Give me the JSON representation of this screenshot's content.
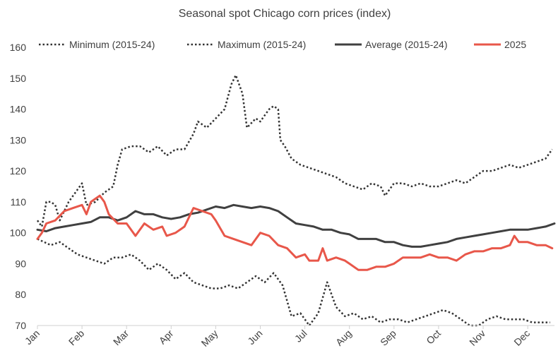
{
  "chart_data": {
    "type": "line",
    "title": "Seasonal spot Chicago corn prices (index)",
    "xlabel": "",
    "ylabel": "",
    "ylim": [
      70,
      160
    ],
    "yticks": [
      70,
      80,
      90,
      100,
      110,
      120,
      130,
      140,
      150,
      160
    ],
    "x_unit": "month",
    "xlim": [
      0,
      11.6
    ],
    "months": [
      "Jan",
      "Feb",
      "Mar",
      "Apr",
      "May",
      "Jun",
      "Jul",
      "Aug",
      "Sep",
      "Oct",
      "Nov",
      "Dec"
    ],
    "grid": false,
    "legend_position": "top",
    "series": [
      {
        "name": "Minimum (2015-24)",
        "color": "#333333",
        "style": "dotted",
        "points": [
          [
            0,
            98
          ],
          [
            0.15,
            97
          ],
          [
            0.3,
            96
          ],
          [
            0.5,
            97
          ],
          [
            0.7,
            95
          ],
          [
            0.9,
            93
          ],
          [
            1.1,
            92
          ],
          [
            1.3,
            91
          ],
          [
            1.5,
            90
          ],
          [
            1.7,
            92
          ],
          [
            1.9,
            92
          ],
          [
            2.1,
            93
          ],
          [
            2.3,
            91
          ],
          [
            2.5,
            88
          ],
          [
            2.7,
            90
          ],
          [
            2.9,
            88
          ],
          [
            3.1,
            85
          ],
          [
            3.3,
            87
          ],
          [
            3.5,
            84
          ],
          [
            3.7,
            83
          ],
          [
            3.9,
            82
          ],
          [
            4.1,
            82
          ],
          [
            4.3,
            83
          ],
          [
            4.5,
            82
          ],
          [
            4.7,
            84
          ],
          [
            4.9,
            86
          ],
          [
            5.1,
            84
          ],
          [
            5.3,
            87
          ],
          [
            5.5,
            83
          ],
          [
            5.7,
            73
          ],
          [
            5.9,
            74
          ],
          [
            6.1,
            70
          ],
          [
            6.3,
            74
          ],
          [
            6.5,
            84
          ],
          [
            6.7,
            76
          ],
          [
            6.9,
            73
          ],
          [
            7.1,
            74
          ],
          [
            7.3,
            72
          ],
          [
            7.5,
            73
          ],
          [
            7.7,
            71
          ],
          [
            7.9,
            72
          ],
          [
            8.1,
            72
          ],
          [
            8.3,
            71
          ],
          [
            8.5,
            72
          ],
          [
            8.7,
            73
          ],
          [
            8.9,
            74
          ],
          [
            9.1,
            75
          ],
          [
            9.3,
            74
          ],
          [
            9.5,
            72
          ],
          [
            9.7,
            70
          ],
          [
            9.9,
            70
          ],
          [
            10.1,
            72
          ],
          [
            10.3,
            73
          ],
          [
            10.5,
            72
          ],
          [
            10.7,
            72
          ],
          [
            10.9,
            72
          ],
          [
            11.1,
            71
          ],
          [
            11.3,
            71
          ],
          [
            11.5,
            71
          ]
        ]
      },
      {
        "name": "Maximum (2015-24)",
        "color": "#333333",
        "style": "dotted",
        "points": [
          [
            0,
            104
          ],
          [
            0.1,
            102
          ],
          [
            0.2,
            110
          ],
          [
            0.3,
            110
          ],
          [
            0.4,
            109
          ],
          [
            0.5,
            104
          ],
          [
            0.7,
            110
          ],
          [
            0.9,
            114
          ],
          [
            1.0,
            116
          ],
          [
            1.1,
            109
          ],
          [
            1.3,
            110
          ],
          [
            1.5,
            113
          ],
          [
            1.7,
            115
          ],
          [
            1.8,
            122
          ],
          [
            1.9,
            127
          ],
          [
            2.1,
            128
          ],
          [
            2.3,
            128
          ],
          [
            2.5,
            126
          ],
          [
            2.7,
            128
          ],
          [
            2.9,
            125
          ],
          [
            3.1,
            127
          ],
          [
            3.3,
            127
          ],
          [
            3.5,
            132
          ],
          [
            3.6,
            136
          ],
          [
            3.8,
            134
          ],
          [
            4.0,
            137
          ],
          [
            4.2,
            140
          ],
          [
            4.35,
            148
          ],
          [
            4.45,
            151
          ],
          [
            4.6,
            145
          ],
          [
            4.7,
            134
          ],
          [
            4.9,
            137
          ],
          [
            5.0,
            136
          ],
          [
            5.1,
            138
          ],
          [
            5.2,
            140
          ],
          [
            5.3,
            141
          ],
          [
            5.4,
            140
          ],
          [
            5.45,
            130
          ],
          [
            5.55,
            128
          ],
          [
            5.7,
            124
          ],
          [
            5.9,
            122
          ],
          [
            6.1,
            121
          ],
          [
            6.3,
            120
          ],
          [
            6.5,
            119
          ],
          [
            6.7,
            118
          ],
          [
            6.9,
            116
          ],
          [
            7.1,
            115
          ],
          [
            7.3,
            114
          ],
          [
            7.5,
            116
          ],
          [
            7.7,
            115
          ],
          [
            7.8,
            112
          ],
          [
            8.0,
            116
          ],
          [
            8.2,
            116
          ],
          [
            8.4,
            115
          ],
          [
            8.6,
            116
          ],
          [
            8.8,
            115
          ],
          [
            9.0,
            115
          ],
          [
            9.2,
            116
          ],
          [
            9.4,
            117
          ],
          [
            9.6,
            116
          ],
          [
            9.8,
            118
          ],
          [
            10.0,
            120
          ],
          [
            10.2,
            120
          ],
          [
            10.4,
            121
          ],
          [
            10.6,
            122
          ],
          [
            10.8,
            121
          ],
          [
            11.0,
            122
          ],
          [
            11.2,
            123
          ],
          [
            11.4,
            124
          ],
          [
            11.5,
            126
          ],
          [
            11.55,
            127
          ]
        ]
      },
      {
        "name": "Average (2015-24)",
        "color": "#404040",
        "style": "solid",
        "points": [
          [
            0,
            101
          ],
          [
            0.2,
            100.5
          ],
          [
            0.4,
            101.5
          ],
          [
            0.6,
            102
          ],
          [
            0.8,
            102.5
          ],
          [
            1.0,
            103
          ],
          [
            1.2,
            103.5
          ],
          [
            1.4,
            105
          ],
          [
            1.6,
            105
          ],
          [
            1.8,
            104
          ],
          [
            2.0,
            105
          ],
          [
            2.2,
            107
          ],
          [
            2.4,
            106
          ],
          [
            2.6,
            106
          ],
          [
            2.8,
            105
          ],
          [
            3.0,
            104.5
          ],
          [
            3.2,
            105
          ],
          [
            3.4,
            106
          ],
          [
            3.6,
            106.5
          ],
          [
            3.8,
            107.5
          ],
          [
            4.0,
            108.5
          ],
          [
            4.2,
            108
          ],
          [
            4.4,
            109
          ],
          [
            4.6,
            108.5
          ],
          [
            4.8,
            108
          ],
          [
            5.0,
            108.5
          ],
          [
            5.2,
            108
          ],
          [
            5.4,
            107
          ],
          [
            5.6,
            105
          ],
          [
            5.8,
            103
          ],
          [
            6.0,
            102.5
          ],
          [
            6.2,
            102
          ],
          [
            6.4,
            101
          ],
          [
            6.6,
            101
          ],
          [
            6.8,
            100
          ],
          [
            7.0,
            99.5
          ],
          [
            7.2,
            98
          ],
          [
            7.4,
            98
          ],
          [
            7.6,
            98
          ],
          [
            7.8,
            97
          ],
          [
            8.0,
            97
          ],
          [
            8.2,
            96
          ],
          [
            8.4,
            95.5
          ],
          [
            8.6,
            95.5
          ],
          [
            8.8,
            96
          ],
          [
            9.0,
            96.5
          ],
          [
            9.2,
            97
          ],
          [
            9.4,
            98
          ],
          [
            9.6,
            98.5
          ],
          [
            9.8,
            99
          ],
          [
            10.0,
            99.5
          ],
          [
            10.2,
            100
          ],
          [
            10.4,
            100.5
          ],
          [
            10.6,
            101
          ],
          [
            10.8,
            101
          ],
          [
            11.0,
            101
          ],
          [
            11.2,
            101.5
          ],
          [
            11.4,
            102
          ],
          [
            11.6,
            103
          ]
        ]
      },
      {
        "name": "2025",
        "color": "#e8574a",
        "style": "solid",
        "points": [
          [
            0,
            98
          ],
          [
            0.1,
            100
          ],
          [
            0.2,
            103
          ],
          [
            0.4,
            104
          ],
          [
            0.6,
            107
          ],
          [
            0.8,
            108
          ],
          [
            1.0,
            109
          ],
          [
            1.1,
            106
          ],
          [
            1.2,
            110
          ],
          [
            1.4,
            112
          ],
          [
            1.5,
            110
          ],
          [
            1.6,
            106
          ],
          [
            1.8,
            103
          ],
          [
            2.0,
            103
          ],
          [
            2.2,
            99
          ],
          [
            2.4,
            103
          ],
          [
            2.6,
            101
          ],
          [
            2.8,
            102
          ],
          [
            2.9,
            99
          ],
          [
            3.1,
            100
          ],
          [
            3.3,
            102
          ],
          [
            3.5,
            108
          ],
          [
            3.7,
            107
          ],
          [
            3.9,
            106
          ],
          [
            4.0,
            104
          ],
          [
            4.2,
            99
          ],
          [
            4.4,
            98
          ],
          [
            4.6,
            97
          ],
          [
            4.8,
            96
          ],
          [
            5.0,
            100
          ],
          [
            5.2,
            99
          ],
          [
            5.4,
            96
          ],
          [
            5.6,
            95
          ],
          [
            5.8,
            92
          ],
          [
            6.0,
            93
          ],
          [
            6.1,
            91
          ],
          [
            6.3,
            91
          ],
          [
            6.4,
            95
          ],
          [
            6.5,
            91
          ],
          [
            6.7,
            92
          ],
          [
            6.9,
            91
          ],
          [
            7.0,
            90
          ],
          [
            7.2,
            88
          ],
          [
            7.4,
            88
          ],
          [
            7.6,
            89
          ],
          [
            7.8,
            89
          ],
          [
            8.0,
            90
          ],
          [
            8.2,
            92
          ],
          [
            8.4,
            92
          ],
          [
            8.6,
            92
          ],
          [
            8.8,
            93
          ],
          [
            9.0,
            92
          ],
          [
            9.2,
            92
          ],
          [
            9.4,
            91
          ],
          [
            9.6,
            93
          ],
          [
            9.8,
            94
          ],
          [
            10.0,
            94
          ],
          [
            10.2,
            95
          ],
          [
            10.4,
            95
          ],
          [
            10.6,
            96
          ],
          [
            10.7,
            99
          ],
          [
            10.8,
            97
          ],
          [
            11.0,
            97
          ],
          [
            11.2,
            96
          ],
          [
            11.4,
            96
          ],
          [
            11.55,
            95
          ]
        ]
      }
    ]
  }
}
